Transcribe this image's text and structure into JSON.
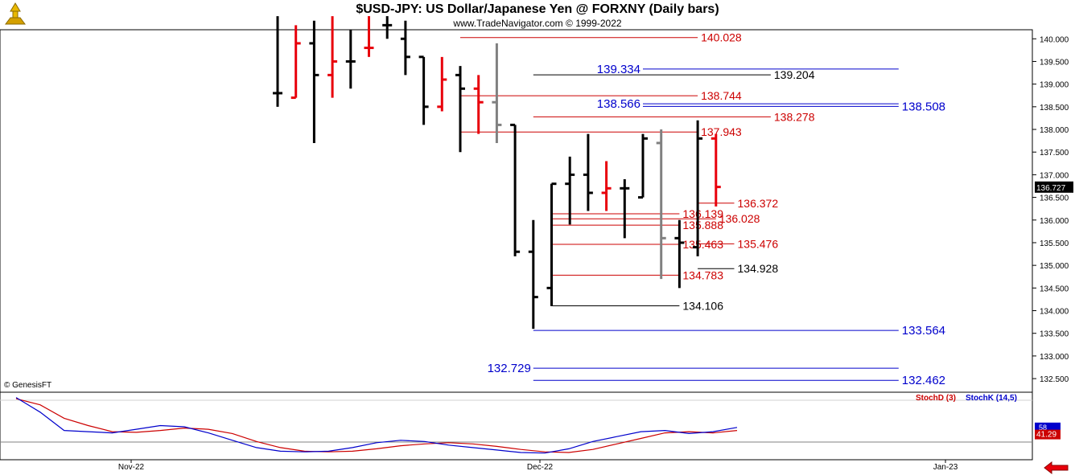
{
  "header": {
    "title": "$USD-JPY:  US Dollar/Japanese Yen @ FORXNY  (Daily bars)",
    "subtitle": "www.TradeNavigator.com © 1999-2022"
  },
  "copyright": "© GenesisFT",
  "colors": {
    "up_bar": "#000000",
    "down_bar": "#e8000b",
    "neutral_bar": "#808080",
    "red_level": "#cc0000",
    "blue_level": "#0000cc",
    "black_level": "#000000",
    "stoch_d": "#cc0000",
    "stoch_k": "#0000cc"
  },
  "chart_data": [
    {
      "type": "ohlc",
      "title": "$USD-JPY:  US Dollar/Japanese Yen @ FORXNY  (Daily bars)",
      "ylim": [
        132.2,
        140.2
      ],
      "y_ticks": [
        "140.000",
        "139.500",
        "139.000",
        "138.500",
        "138.000",
        "137.500",
        "137.000",
        "136.500",
        "136.000",
        "135.500",
        "135.000",
        "134.500",
        "134.000",
        "133.500",
        "133.000",
        "132.500"
      ],
      "x_ticks": [
        "Nov-22",
        "Dec-22",
        "Jan-23"
      ],
      "last_price": "136.727",
      "bars": [
        {
          "o": 138.8,
          "h": 140.5,
          "l": 138.5,
          "c": 138.8,
          "col": "up"
        },
        {
          "o": 138.7,
          "h": 140.3,
          "l": 138.7,
          "c": 139.9,
          "col": "down"
        },
        {
          "o": 139.9,
          "h": 140.4,
          "l": 137.7,
          "c": 139.2,
          "col": "up"
        },
        {
          "o": 139.2,
          "h": 140.5,
          "l": 138.7,
          "c": 139.5,
          "col": "down"
        },
        {
          "o": 139.5,
          "h": 140.2,
          "l": 138.9,
          "c": 139.5,
          "col": "up"
        },
        {
          "o": 139.8,
          "h": 140.5,
          "l": 139.6,
          "c": 139.8,
          "col": "down"
        },
        {
          "o": 140.3,
          "h": 140.5,
          "l": 140.0,
          "c": 140.3,
          "col": "up"
        },
        {
          "o": 140.0,
          "h": 140.4,
          "l": 139.2,
          "c": 139.6,
          "col": "up"
        },
        {
          "o": 139.6,
          "h": 139.6,
          "l": 138.1,
          "c": 138.5,
          "col": "up"
        },
        {
          "o": 138.5,
          "h": 139.6,
          "l": 138.4,
          "c": 139.1,
          "col": "down"
        },
        {
          "o": 139.2,
          "h": 139.4,
          "l": 137.5,
          "c": 138.9,
          "col": "up"
        },
        {
          "o": 138.9,
          "h": 139.2,
          "l": 137.9,
          "c": 138.6,
          "col": "down"
        },
        {
          "o": 138.6,
          "h": 139.9,
          "l": 137.7,
          "c": 138.1,
          "col": "neutral"
        },
        {
          "o": 138.1,
          "h": 138.1,
          "l": 135.2,
          "c": 135.3,
          "col": "up"
        },
        {
          "o": 135.3,
          "h": 136.0,
          "l": 133.6,
          "c": 134.3,
          "col": "up"
        },
        {
          "o": 134.5,
          "h": 136.8,
          "l": 134.1,
          "c": 136.8,
          "col": "up"
        },
        {
          "o": 136.8,
          "h": 137.4,
          "l": 135.9,
          "c": 137.0,
          "col": "up"
        },
        {
          "o": 137.0,
          "h": 137.9,
          "l": 136.2,
          "c": 136.6,
          "col": "up"
        },
        {
          "o": 136.6,
          "h": 137.3,
          "l": 136.2,
          "c": 136.7,
          "col": "down"
        },
        {
          "o": 136.7,
          "h": 136.9,
          "l": 135.6,
          "c": 136.7,
          "col": "up"
        },
        {
          "o": 136.5,
          "h": 137.9,
          "l": 136.5,
          "c": 137.8,
          "col": "up"
        },
        {
          "o": 137.7,
          "h": 138.0,
          "l": 134.7,
          "c": 135.6,
          "col": "neutral"
        },
        {
          "o": 135.6,
          "h": 136.0,
          "l": 134.5,
          "c": 135.5,
          "col": "up"
        },
        {
          "o": 135.4,
          "h": 138.2,
          "l": 135.2,
          "c": 137.8,
          "col": "up"
        },
        {
          "o": 137.8,
          "h": 137.9,
          "l": 136.3,
          "c": 136.73,
          "col": "down"
        }
      ],
      "levels": [
        {
          "value": 140.028,
          "label": "140.028",
          "color": "red",
          "from": 10,
          "to": 23,
          "label_at": "right"
        },
        {
          "value": 139.334,
          "label": "139.334",
          "color": "blue",
          "from": 20,
          "to": 34,
          "label_at": "left"
        },
        {
          "value": 139.204,
          "label": "139.204",
          "color": "black",
          "from": 14,
          "to": 27,
          "label_at": "right"
        },
        {
          "value": 138.744,
          "label": "138.744",
          "color": "red",
          "from": 10,
          "to": 23,
          "label_at": "right"
        },
        {
          "value": 138.566,
          "label": "138.566",
          "color": "blue",
          "from": 20,
          "to": 34,
          "label_at": "left"
        },
        {
          "value": 138.508,
          "label": "138.508",
          "color": "blue",
          "from": 20,
          "to": 34,
          "label_at": "right"
        },
        {
          "value": 138.278,
          "label": "138.278",
          "color": "red",
          "from": 14,
          "to": 27,
          "label_at": "right"
        },
        {
          "value": 137.943,
          "label": "137.943",
          "color": "red",
          "from": 10,
          "to": 23,
          "label_at": "right"
        },
        {
          "value": 136.372,
          "label": "136.372",
          "color": "red",
          "from": 23,
          "to": 25,
          "label_at": "right"
        },
        {
          "value": 136.139,
          "label": "136.139",
          "color": "red",
          "from": 15,
          "to": 22,
          "label_at": "right"
        },
        {
          "value": 136.028,
          "label": "136.028",
          "color": "red",
          "from": 15,
          "to": 24,
          "label_at": "right"
        },
        {
          "value": 135.888,
          "label": "135.888",
          "color": "red",
          "from": 15,
          "to": 22,
          "label_at": "right"
        },
        {
          "value": 135.476,
          "label": "135.476",
          "color": "red",
          "from": 23,
          "to": 25,
          "label_at": "right"
        },
        {
          "value": 135.463,
          "label": "135.463",
          "color": "red",
          "from": 15,
          "to": 22,
          "label_at": "right"
        },
        {
          "value": 134.928,
          "label": "134.928",
          "color": "black",
          "from": 23,
          "to": 25,
          "label_at": "right"
        },
        {
          "value": 134.783,
          "label": "134.783",
          "color": "red",
          "from": 15,
          "to": 22,
          "label_at": "right"
        },
        {
          "value": 134.106,
          "label": "134.106",
          "color": "black",
          "from": 15,
          "to": 22,
          "label_at": "right"
        },
        {
          "value": 133.564,
          "label": "133.564",
          "color": "blue",
          "from": 14,
          "to": 34,
          "label_at": "right"
        },
        {
          "value": 132.729,
          "label": "132.729",
          "color": "blue",
          "from": 14,
          "to": 34,
          "label_at": "left"
        },
        {
          "value": 132.462,
          "label": "132.462",
          "color": "blue",
          "from": 14,
          "to": 34,
          "label_at": "right"
        }
      ]
    },
    {
      "type": "line",
      "legend": [
        "StochD (3)",
        "StochK (14,5)"
      ],
      "ylim": [
        0,
        100
      ],
      "y_ticks": [
        "58",
        "41.29"
      ],
      "series": [
        {
          "name": "StochD (3)",
          "values": [
            92,
            82,
            60,
            48,
            38,
            37,
            40,
            44,
            42,
            35,
            22,
            12,
            6,
            5,
            6,
            10,
            15,
            18,
            20,
            18,
            14,
            9,
            5,
            4,
            9,
            18,
            27,
            36,
            38,
            36,
            40
          ]
        },
        {
          "name": "StochK (14,5)",
          "values": [
            94,
            70,
            40,
            38,
            36,
            42,
            48,
            46,
            36,
            24,
            12,
            6,
            5,
            6,
            12,
            20,
            24,
            22,
            16,
            12,
            8,
            4,
            3,
            10,
            22,
            30,
            38,
            40,
            35,
            38,
            45
          ]
        }
      ]
    }
  ]
}
